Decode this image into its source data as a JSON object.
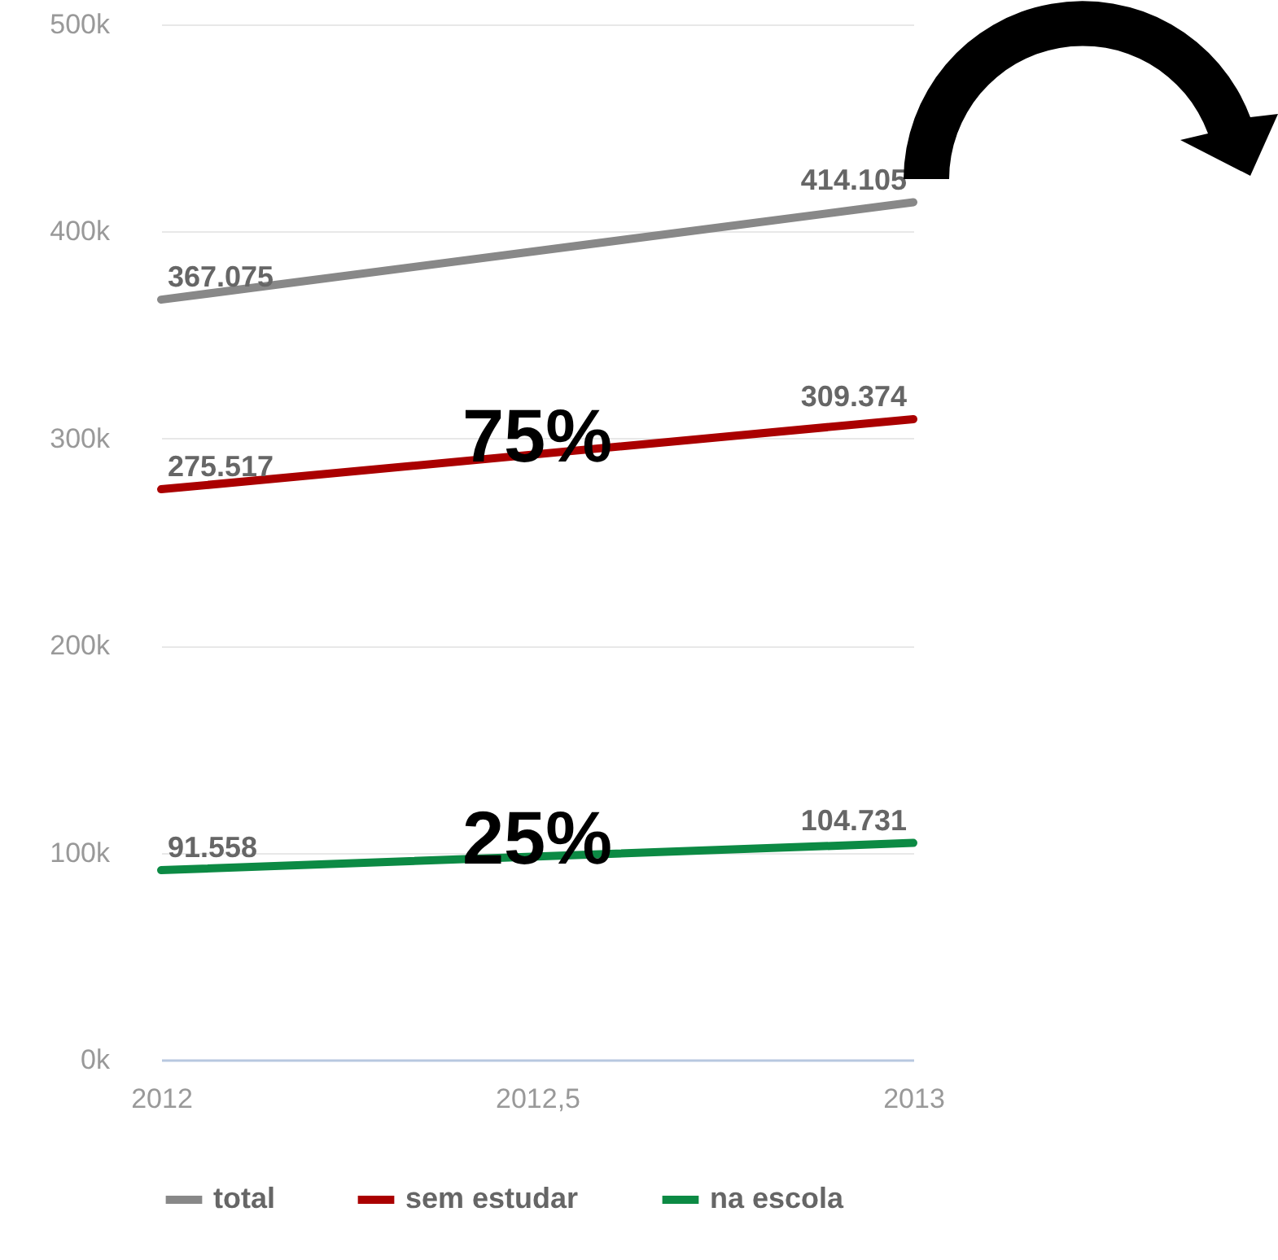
{
  "chart_data": {
    "type": "line",
    "x": [
      2012,
      2013
    ],
    "xlim": [
      2012,
      2013
    ],
    "xticks": [
      2012,
      {
        "value": 2012.5,
        "label": "2012,5"
      },
      2013
    ],
    "ylim": [
      0,
      500000
    ],
    "yticks": [
      {
        "value": 0,
        "label": "0k"
      },
      {
        "value": 100000,
        "label": "100k"
      },
      {
        "value": 200000,
        "label": "200k"
      },
      {
        "value": 300000,
        "label": "300k"
      },
      {
        "value": 400000,
        "label": "400k"
      },
      {
        "value": 500000,
        "label": "500k"
      }
    ],
    "grid": "y",
    "legend": "bottom",
    "series": [
      {
        "name": "total",
        "color": "#888888",
        "values": [
          367075,
          414105
        ],
        "value_labels": [
          "367.075",
          "414.105"
        ]
      },
      {
        "name": "sem estudar",
        "color": "#aa0000",
        "values": [
          275517,
          309374
        ],
        "value_labels": [
          "275.517",
          "309.374"
        ]
      },
      {
        "name": "na escola",
        "color": "#0c8a44",
        "values": [
          91558,
          104731
        ],
        "value_labels": [
          "91.558",
          "104.731"
        ]
      }
    ],
    "annotations": [
      {
        "text": "75%",
        "x": 2012.5,
        "y": 292000
      },
      {
        "text": "25%",
        "x": 2012.5,
        "y": 98000
      }
    ]
  }
}
